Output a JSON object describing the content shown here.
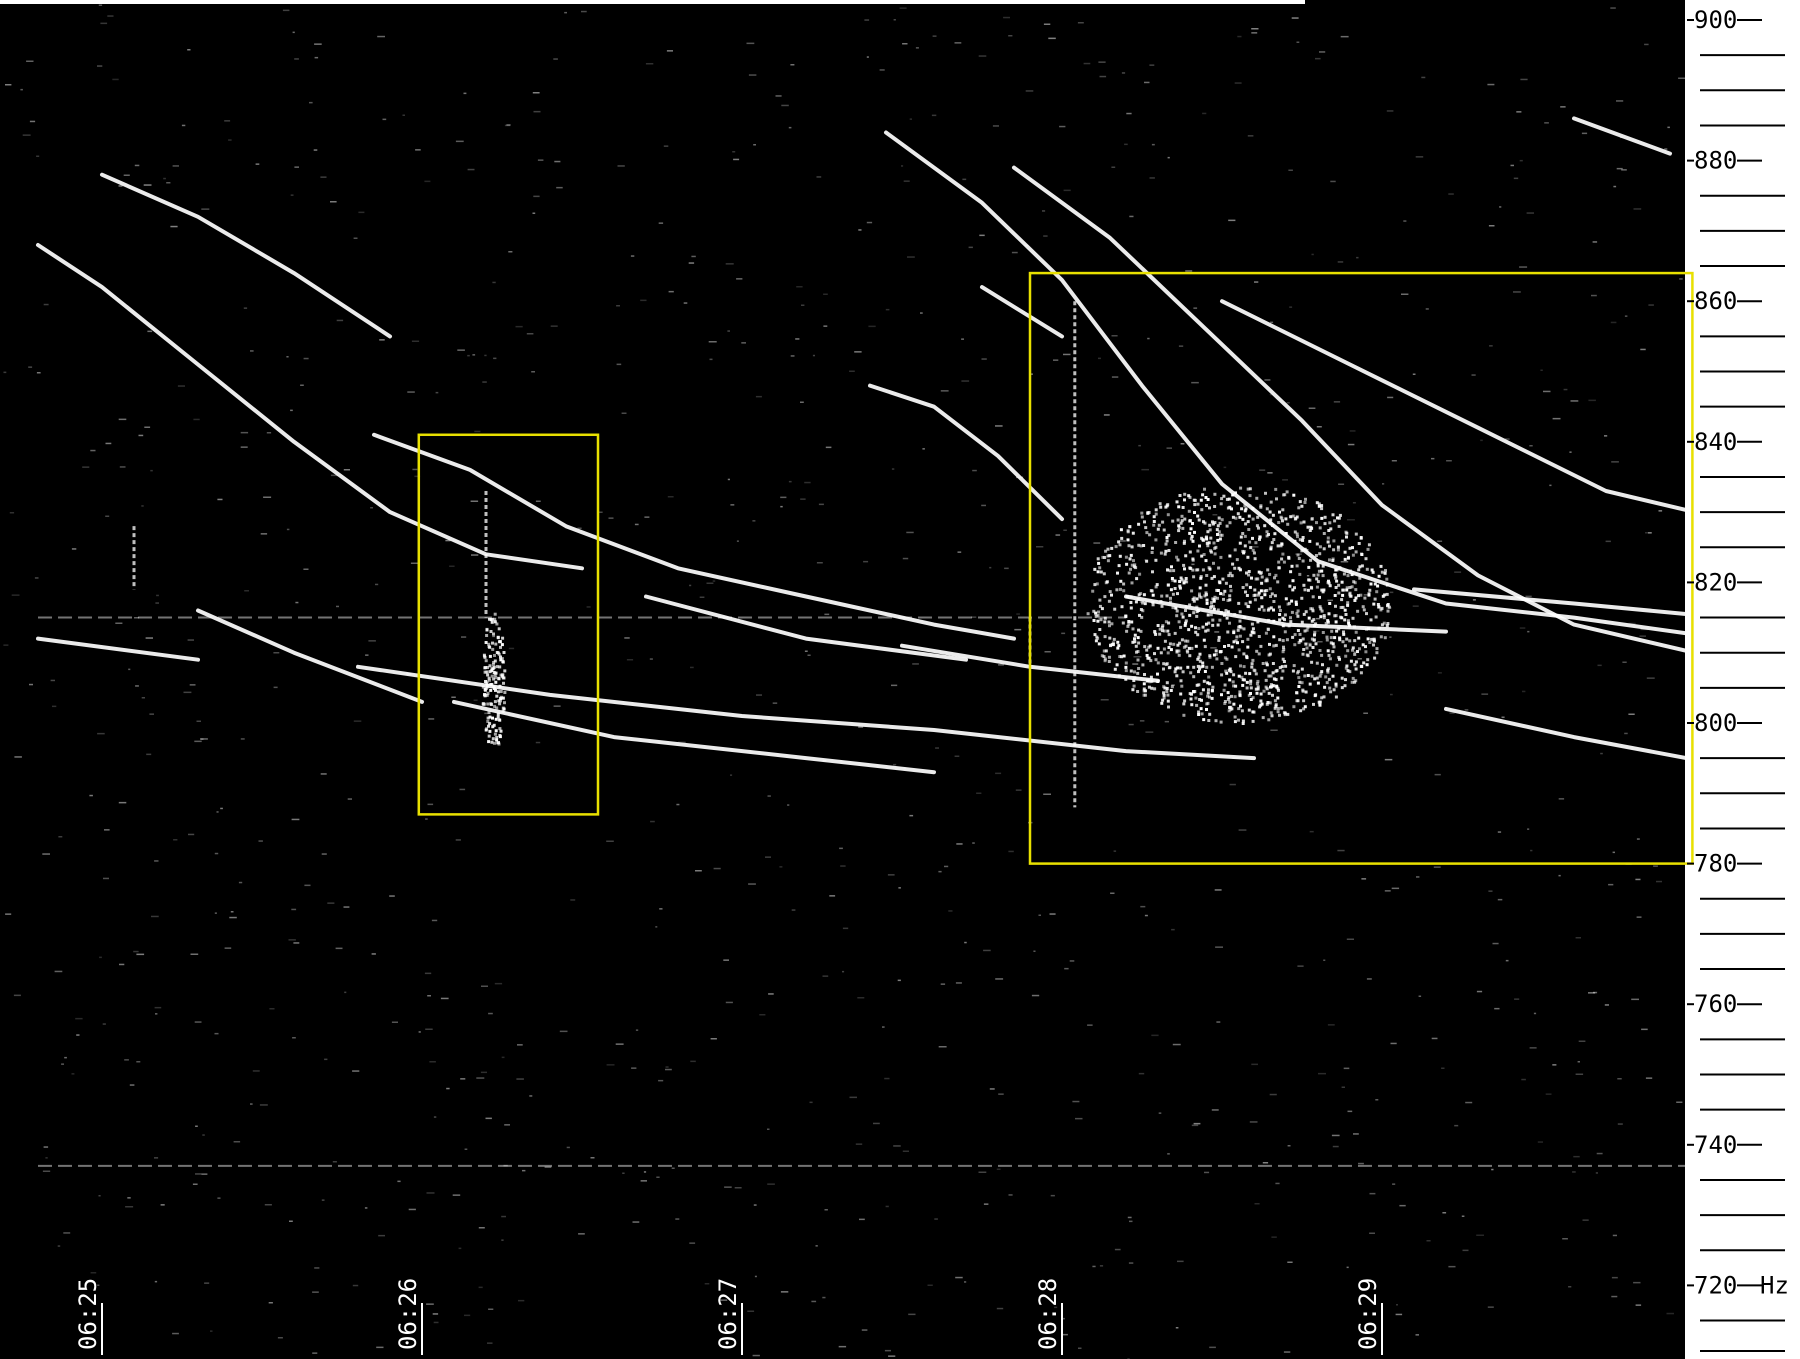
{
  "chart_data": {
    "type": "heatmap",
    "title": "",
    "x_axis": {
      "ticks": [
        "06:25",
        "06:26",
        "06:27",
        "06:28",
        "06:29"
      ],
      "range_minutes": [
        -0.2,
        5.07
      ]
    },
    "y_axis": {
      "unit_label": "Hz",
      "ticks": [
        900,
        880,
        860,
        840,
        820,
        800,
        780,
        760,
        740,
        720
      ],
      "range": [
        710,
        902
      ],
      "minor_step": 5
    },
    "background_color": "#000000",
    "trace_color": "#ffffff",
    "highlight_color": "#e8e000",
    "traces": [
      {
        "points": [
          [
            -0.2,
            868
          ],
          [
            0.0,
            862
          ],
          [
            0.3,
            851
          ],
          [
            0.6,
            840
          ],
          [
            0.9,
            830
          ],
          [
            1.2,
            824
          ],
          [
            1.5,
            822
          ]
        ]
      },
      {
        "points": [
          [
            0.0,
            878
          ],
          [
            0.3,
            872
          ],
          [
            0.6,
            864
          ],
          [
            0.9,
            855
          ]
        ]
      },
      {
        "points": [
          [
            0.85,
            841
          ],
          [
            1.15,
            836
          ],
          [
            1.45,
            828
          ],
          [
            1.8,
            822
          ],
          [
            2.2,
            818
          ],
          [
            2.6,
            814
          ],
          [
            2.85,
            812
          ]
        ]
      },
      {
        "points": [
          [
            -0.2,
            812
          ],
          [
            0.3,
            809
          ]
        ]
      },
      {
        "points": [
          [
            0.3,
            816
          ],
          [
            0.6,
            810
          ],
          [
            1.0,
            803
          ]
        ]
      },
      {
        "points": [
          [
            1.7,
            818
          ],
          [
            2.2,
            812
          ],
          [
            2.7,
            809
          ]
        ]
      },
      {
        "points": [
          [
            1.1,
            803
          ],
          [
            1.6,
            798
          ],
          [
            2.2,
            795
          ],
          [
            2.6,
            793
          ]
        ]
      },
      {
        "points": [
          [
            0.8,
            808
          ],
          [
            1.4,
            804
          ],
          [
            2.0,
            801
          ],
          [
            2.6,
            799
          ],
          [
            3.2,
            796
          ],
          [
            3.6,
            795
          ]
        ]
      },
      {
        "points": [
          [
            2.5,
            811
          ],
          [
            2.9,
            808
          ],
          [
            3.3,
            806
          ]
        ]
      },
      {
        "points": [
          [
            2.4,
            848
          ],
          [
            2.6,
            845
          ],
          [
            2.8,
            838
          ],
          [
            3.0,
            829
          ]
        ]
      },
      {
        "points": [
          [
            2.45,
            884
          ],
          [
            2.75,
            874
          ],
          [
            3.0,
            863
          ],
          [
            3.25,
            848
          ],
          [
            3.5,
            834
          ],
          [
            3.8,
            823
          ],
          [
            4.2,
            817
          ],
          [
            4.6,
            815
          ],
          [
            5.07,
            812
          ]
        ]
      },
      {
        "points": [
          [
            2.85,
            879
          ],
          [
            3.15,
            869
          ],
          [
            3.45,
            856
          ],
          [
            3.75,
            843
          ],
          [
            4.0,
            831
          ],
          [
            4.3,
            821
          ],
          [
            4.6,
            814
          ],
          [
            5.07,
            809
          ]
        ]
      },
      {
        "points": [
          [
            3.5,
            860
          ],
          [
            3.9,
            851
          ],
          [
            4.3,
            842
          ],
          [
            4.7,
            833
          ],
          [
            5.07,
            829
          ]
        ]
      },
      {
        "points": [
          [
            2.75,
            862
          ],
          [
            3.0,
            855
          ]
        ]
      },
      {
        "points": [
          [
            4.1,
            819
          ],
          [
            4.6,
            817
          ],
          [
            5.07,
            815
          ]
        ]
      },
      {
        "points": [
          [
            3.2,
            818
          ],
          [
            3.7,
            814
          ],
          [
            4.2,
            813
          ]
        ]
      },
      {
        "points": [
          [
            4.6,
            886
          ],
          [
            4.9,
            881
          ]
        ]
      },
      {
        "points": [
          [
            4.2,
            802
          ],
          [
            4.6,
            798
          ],
          [
            5.07,
            794
          ]
        ]
      }
    ],
    "blobs": [
      {
        "x": 3.55,
        "y": 817,
        "rx_min": 0.48,
        "ry_hz": 17,
        "density": 1400
      },
      {
        "x": 1.22,
        "y": 806,
        "rx_min": 0.035,
        "ry_hz": 10,
        "density": 160
      }
    ],
    "vertical_streaks": [
      {
        "x": 3.04,
        "y_from": 788,
        "y_to": 860
      },
      {
        "x": 1.2,
        "y_from": 815,
        "y_to": 833
      },
      {
        "x": 0.1,
        "y_from": 819,
        "y_to": 828
      },
      {
        "x": 2.9,
        "y_from": 808,
        "y_to": 815
      }
    ],
    "hum_lines": [
      {
        "y": 815,
        "x_from": -0.2,
        "x_to": 3.2
      },
      {
        "y": 737,
        "x_from": -0.2,
        "x_to": 5.07
      }
    ],
    "highlight_boxes": [
      {
        "x_from": 0.99,
        "x_to": 1.55,
        "y_from": 787,
        "y_to": 841
      },
      {
        "x_from": 2.9,
        "x_to": 4.97,
        "y_from": 780,
        "y_to": 864
      }
    ],
    "top_bar_color": "#ffffff"
  }
}
